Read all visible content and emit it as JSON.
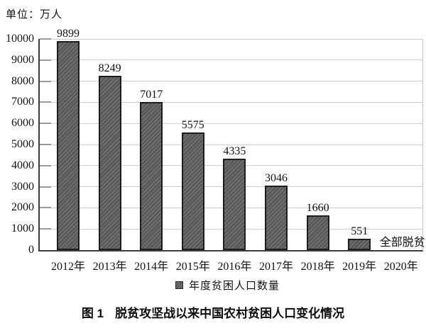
{
  "unit_label": "单位：万人",
  "chart_data": {
    "type": "bar",
    "title": "脱贫攻坚战以来中国农村贫困人口变化情况",
    "categories": [
      "2012年",
      "2013年",
      "2014年",
      "2015年",
      "2016年",
      "2017年",
      "2018年",
      "2019年",
      "2020年"
    ],
    "values": [
      9899,
      8249,
      7017,
      5575,
      4335,
      3046,
      1660,
      551,
      null
    ],
    "annotation": {
      "category": "2020年",
      "text": "全部脱贫"
    },
    "legend": {
      "label": "年度贫困人口数量",
      "position": "bottom"
    },
    "ylabel": "单位：万人",
    "ylim": [
      0,
      10000
    ],
    "ytick_step": 1000,
    "yticks": [
      0,
      1000,
      2000,
      3000,
      4000,
      5000,
      6000,
      7000,
      8000,
      9000,
      10000
    ],
    "grid": true,
    "bar_style": {
      "fill": "#595959",
      "hatch": "diagonal-forward",
      "border": "#1e1e1e"
    }
  },
  "caption": {
    "label": "图 1",
    "text": "脱贫攻坚战以来中国农村贫困人口变化情况"
  },
  "colors": {
    "background": "#ffffff",
    "grid": "#cbcbcb",
    "axis": "#3c3c3c",
    "tick": "#9a9a9a",
    "text": "#111111"
  }
}
